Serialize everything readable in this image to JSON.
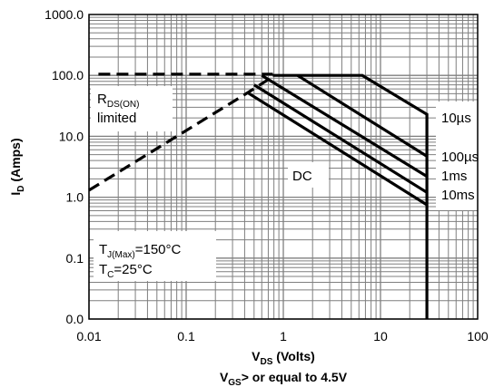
{
  "chart_data": {
    "type": "line",
    "title": "",
    "xlabel": "V",
    "xlabel_sub": "DS",
    "xlabel_rest": " (Volts)",
    "xlabel_line2": "V",
    "xlabel_line2_sub": "GS",
    "xlabel_line2_rest": "> or equal to 4.5V",
    "ylabel": "I",
    "ylabel_sub": "D",
    "ylabel_rest": " (Amps)",
    "x_scale": "log",
    "y_scale": "log",
    "xlim": [
      0.01,
      100
    ],
    "ylim": [
      0.01,
      1000
    ],
    "grid": true,
    "x_ticks": [
      {
        "value": 0.01,
        "label": "0.01"
      },
      {
        "value": 0.1,
        "label": "0.1"
      },
      {
        "value": 1,
        "label": "1"
      },
      {
        "value": 10,
        "label": "10"
      },
      {
        "value": 100,
        "label": "100"
      }
    ],
    "y_ticks": [
      {
        "value": 0.01,
        "label": "0.0"
      },
      {
        "value": 0.1,
        "label": "0.1"
      },
      {
        "value": 1,
        "label": "1.0"
      },
      {
        "value": 10,
        "label": "10.0"
      },
      {
        "value": 100,
        "label": "100.0"
      },
      {
        "value": 1000,
        "label": "1000.0"
      }
    ],
    "series": [
      {
        "name": "RDS(ON) limited",
        "style": "dashed",
        "points": [
          [
            0.01,
            1.3
          ],
          [
            0.43,
            52
          ],
          [
            0.8,
            98
          ]
        ]
      },
      {
        "name": "10µs",
        "style": "solid",
        "points": [
          [
            0.78,
            100
          ],
          [
            6.5,
            100
          ],
          [
            30,
            23
          ],
          [
            30,
            0.01
          ]
        ]
      },
      {
        "name": "100µs",
        "style": "solid",
        "points": [
          [
            1.4,
            100
          ],
          [
            30,
            4.7
          ]
        ]
      },
      {
        "name": "1ms",
        "style": "solid",
        "points": [
          [
            0.6,
            100
          ],
          [
            30,
            2.2
          ]
        ]
      },
      {
        "name": "10ms",
        "style": "solid",
        "points": [
          [
            0.5,
            70
          ],
          [
            30,
            1.2
          ]
        ]
      },
      {
        "name": "DC",
        "style": "solid",
        "points": [
          [
            0.43,
            52
          ],
          [
            30,
            0.75
          ]
        ]
      },
      {
        "name": "limit",
        "style": "dashed",
        "points": [
          [
            0.0125,
            105
          ],
          [
            0.78,
            105
          ]
        ]
      }
    ],
    "annotations": {
      "rds_line1": "R",
      "rds_line1_sub": "DS(ON)",
      "rds_line2": "limited",
      "tj_main": "T",
      "tj_sub": "J(Max)",
      "tj_value": "=150°C",
      "tc_main": "T",
      "tc_sub": "C",
      "tc_value": "=25°C",
      "pulse_labels": [
        "10µs",
        "100µs",
        "1ms",
        "10ms"
      ],
      "dc_label": "DC"
    }
  }
}
